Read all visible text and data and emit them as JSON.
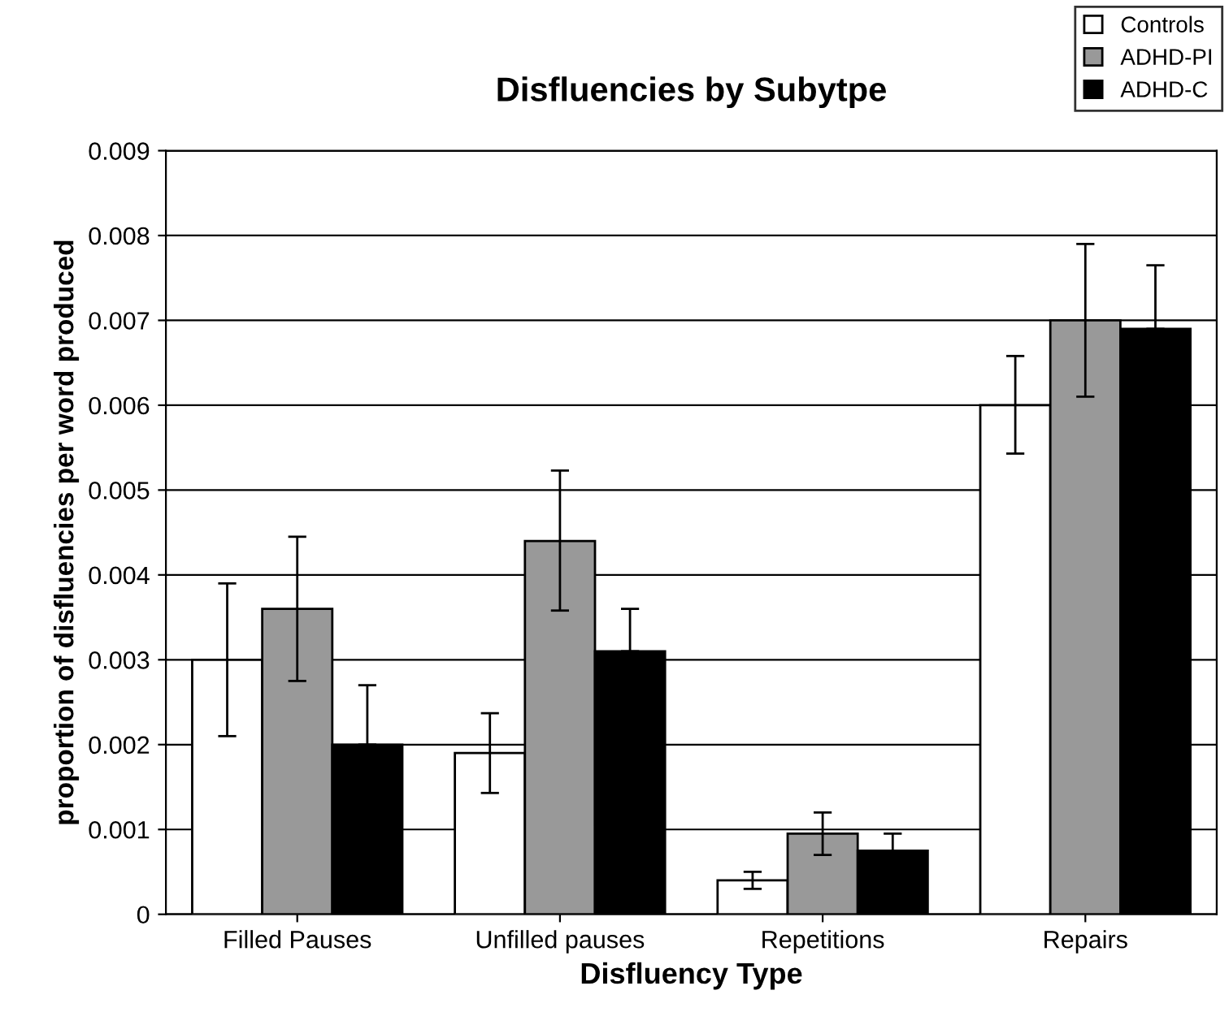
{
  "chart_data": {
    "type": "bar",
    "title": "Disfluencies by Subytpe",
    "xlabel": "Disfluency Type",
    "ylabel": "proportion of disfluencies per word produced",
    "categories": [
      "Filled Pauses",
      "Unfilled pauses",
      "Repetitions",
      "Repairs"
    ],
    "series": [
      {
        "name": "Controls",
        "color": "#ffffff",
        "values": [
          0.003,
          0.0019,
          0.0004,
          0.006
        ],
        "errors": [
          [
            0.0021,
            0.0039
          ],
          [
            0.00143,
            0.00237
          ],
          [
            0.0003,
            0.0005
          ],
          [
            0.00543,
            0.00658
          ]
        ]
      },
      {
        "name": "ADHD-PI",
        "color": "#999999",
        "values": [
          0.0036,
          0.0044,
          0.00095,
          0.007
        ],
        "errors": [
          [
            0.00275,
            0.00445
          ],
          [
            0.00358,
            0.00523
          ],
          [
            0.0007,
            0.0012
          ],
          [
            0.0061,
            0.0079
          ]
        ]
      },
      {
        "name": "ADHD-C",
        "color": "#000000",
        "values": [
          0.002,
          0.0031,
          0.00075,
          0.0069
        ],
        "errors": [
          [
            0.002,
            0.0027
          ],
          [
            0.0031,
            0.0036
          ],
          [
            0.00075,
            0.00095
          ],
          [
            0.0069,
            0.00765
          ]
        ]
      }
    ],
    "ylim": [
      0,
      0.009
    ],
    "yticks": [
      0,
      0.001,
      0.002,
      0.003,
      0.004,
      0.005,
      0.006,
      0.007,
      0.008,
      0.009
    ],
    "grid": "y",
    "legend": "top right"
  }
}
